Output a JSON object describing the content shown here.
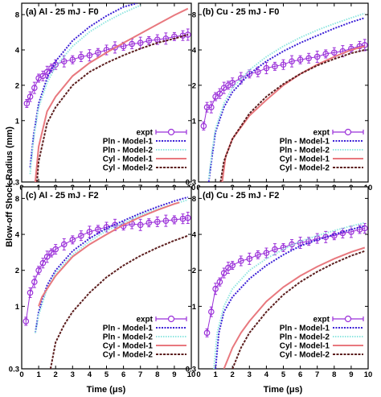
{
  "figure": {
    "ylabel": "Blow-off Shock Radius (mm)",
    "xlabel": "Time (μs)"
  },
  "series_style": {
    "expt": {
      "color": "#9b30d9"
    },
    "Pln - Model-1": {
      "color": "#3b1fd6"
    },
    "Pln - Model-2": {
      "color": "#8fe6e0"
    },
    "Cyl - Model-1": {
      "color": "#e8787e"
    },
    "Cyl - Model-2": {
      "color": "#5c1e1e"
    }
  },
  "chart_data": [
    {
      "type": "line",
      "title": "(a) Al - 25 mJ - F0",
      "xlabel": "Time (μs)",
      "ylabel": "Blow-off Shock Radius (mm)",
      "xlim": [
        0,
        10
      ],
      "ylim": [
        0.3,
        10
      ],
      "yscale": "log",
      "xticks": [
        "0",
        "1",
        "2",
        "3",
        "4",
        "5",
        "6",
        "7",
        "8",
        "9",
        "10"
      ],
      "yticks": [
        "0.3",
        "1",
        "2",
        "4",
        "8"
      ],
      "legend_position": "bottom-right",
      "series": [
        {
          "name": "expt",
          "x": [
            0.3,
            0.5,
            0.75,
            1.0,
            1.25,
            1.5,
            1.75,
            2.0,
            2.5,
            3.0,
            3.5,
            4.0,
            4.5,
            5.0,
            5.5,
            6.0,
            6.5,
            7.0,
            7.5,
            8.0,
            8.5,
            9.0,
            9.5,
            9.8
          ],
          "y": [
            1.4,
            1.6,
            1.9,
            2.3,
            2.4,
            2.6,
            2.8,
            3.0,
            3.2,
            3.3,
            3.5,
            3.6,
            3.8,
            4.0,
            4.2,
            4.3,
            4.5,
            4.6,
            4.8,
            4.9,
            5.0,
            5.2,
            5.3,
            5.4
          ]
        },
        {
          "name": "Pln - Model-1",
          "x": [
            0.5,
            0.7,
            1.0,
            1.5,
            2.0,
            3.0,
            4.0,
            5.0,
            6.0,
            6.8
          ],
          "y": [
            0.4,
            0.75,
            1.4,
            2.3,
            3.2,
            4.8,
            6.3,
            7.8,
            9.3,
            10.0
          ]
        },
        {
          "name": "Pln - Model-2",
          "x": [
            0.5,
            0.7,
            1.0,
            1.5,
            2.0,
            3.0,
            4.0,
            5.0,
            6.0,
            7.0
          ],
          "y": [
            0.35,
            0.7,
            1.3,
            2.1,
            2.9,
            4.3,
            5.7,
            7.0,
            8.3,
            9.6
          ]
        },
        {
          "name": "Cyl - Model-1",
          "x": [
            0.8,
            1.0,
            1.5,
            2.0,
            3.0,
            4.0,
            5.0,
            6.0,
            7.0,
            8.0,
            9.0,
            9.8
          ],
          "y": [
            0.3,
            0.6,
            1.2,
            1.6,
            2.4,
            3.1,
            3.8,
            4.6,
            5.5,
            6.6,
            7.9,
            9.0
          ]
        },
        {
          "name": "Cyl - Model-2",
          "x": [
            0.9,
            1.0,
            1.5,
            2.0,
            3.0,
            4.0,
            5.0,
            6.0,
            7.0,
            8.0,
            9.0,
            9.8
          ],
          "y": [
            0.3,
            0.45,
            0.95,
            1.3,
            2.0,
            2.6,
            3.1,
            3.6,
            4.1,
            4.6,
            5.0,
            5.4
          ]
        }
      ]
    },
    {
      "type": "line",
      "title": "(b) Cu - 25 mJ - F0",
      "xlabel": "Time (μs)",
      "ylabel": "Blow-off Shock Radius (mm)",
      "xlim": [
        0,
        10
      ],
      "ylim": [
        0.3,
        10
      ],
      "yscale": "log",
      "xticks": [
        "0",
        "1",
        "2",
        "3",
        "4",
        "5",
        "6",
        "7",
        "8",
        "9",
        "10"
      ],
      "yticks": [
        "0.3",
        "1",
        "2",
        "4",
        "8"
      ],
      "legend_position": "bottom-right",
      "series": [
        {
          "name": "expt",
          "x": [
            0.3,
            0.5,
            0.75,
            1.0,
            1.25,
            1.5,
            1.75,
            2.0,
            2.5,
            3.0,
            3.5,
            4.0,
            4.5,
            5.0,
            5.5,
            6.0,
            6.5,
            7.0,
            7.5,
            8.0,
            8.5,
            9.0,
            9.5,
            9.8
          ],
          "y": [
            0.9,
            1.3,
            1.3,
            1.6,
            1.7,
            1.9,
            2.0,
            2.1,
            2.3,
            2.5,
            2.6,
            2.8,
            2.9,
            3.0,
            3.2,
            3.3,
            3.4,
            3.5,
            3.7,
            3.8,
            3.9,
            4.1,
            4.3,
            4.4
          ]
        },
        {
          "name": "Pln - Model-1",
          "x": [
            0.6,
            0.8,
            1.0,
            1.5,
            2.0,
            3.0,
            4.0,
            5.0,
            6.0,
            7.0,
            8.0,
            9.0,
            9.8
          ],
          "y": [
            0.3,
            0.5,
            0.8,
            1.3,
            1.75,
            2.5,
            3.2,
            3.9,
            4.6,
            5.3,
            6.1,
            6.9,
            7.5
          ]
        },
        {
          "name": "Pln - Model-2",
          "x": [
            0.6,
            0.8,
            1.0,
            1.5,
            2.0,
            3.0,
            4.0,
            5.0,
            6.0,
            7.0,
            8.0,
            9.0,
            9.8
          ],
          "y": [
            0.32,
            0.55,
            0.85,
            1.4,
            1.9,
            2.7,
            3.5,
            4.3,
            5.1,
            5.9,
            6.7,
            7.5,
            8.2
          ]
        },
        {
          "name": "Cyl - Model-1",
          "x": [
            1.4,
            1.6,
            2.0,
            3.0,
            4.0,
            5.0,
            6.0,
            7.0,
            8.0,
            9.0,
            9.8
          ],
          "y": [
            0.3,
            0.5,
            0.7,
            1.1,
            1.5,
            2.0,
            2.5,
            3.0,
            3.5,
            4.0,
            4.3
          ]
        },
        {
          "name": "Cyl - Model-2",
          "x": [
            1.3,
            1.5,
            2.0,
            3.0,
            4.0,
            5.0,
            6.0,
            7.0,
            8.0,
            9.0,
            9.8
          ],
          "y": [
            0.3,
            0.45,
            0.7,
            1.15,
            1.6,
            2.05,
            2.5,
            2.95,
            3.35,
            3.75,
            4.0
          ]
        }
      ]
    },
    {
      "type": "line",
      "title": "(c) Al - 25 mJ - F2",
      "xlabel": "Time (μs)",
      "ylabel": "Blow-off Shock Radius (mm)",
      "xlim": [
        0,
        10
      ],
      "ylim": [
        0.3,
        10
      ],
      "yscale": "log",
      "xticks": [
        "0",
        "1",
        "2",
        "3",
        "4",
        "5",
        "6",
        "7",
        "8",
        "9",
        "10"
      ],
      "yticks": [
        "0.3",
        "1",
        "2",
        "4",
        "8"
      ],
      "legend_position": "bottom-right",
      "series": [
        {
          "name": "expt",
          "x": [
            0.25,
            0.5,
            0.75,
            1.0,
            1.25,
            1.5,
            1.75,
            2.0,
            2.5,
            3.0,
            3.5,
            4.0,
            4.5,
            5.0,
            5.5,
            6.0,
            6.5,
            7.0,
            7.5,
            8.0,
            8.5,
            9.0,
            9.5,
            9.8
          ],
          "y": [
            0.75,
            1.3,
            1.6,
            2.0,
            2.3,
            2.6,
            2.8,
            3.0,
            3.3,
            3.6,
            3.9,
            4.2,
            4.4,
            4.6,
            4.8,
            4.7,
            4.9,
            4.8,
            5.0,
            5.1,
            5.2,
            5.3,
            5.4,
            5.5
          ]
        },
        {
          "name": "Pln - Model-1",
          "x": [
            0.8,
            1.0,
            1.5,
            2.0,
            3.0,
            4.0,
            5.0,
            6.0,
            7.0,
            8.0,
            9.0,
            9.8
          ],
          "y": [
            0.6,
            0.9,
            1.5,
            2.0,
            2.9,
            3.7,
            4.5,
            5.2,
            6.0,
            6.8,
            7.6,
            8.2
          ]
        },
        {
          "name": "Pln - Model-2",
          "x": [
            0.8,
            1.0,
            1.5,
            2.0,
            3.0,
            4.0,
            5.0,
            6.0,
            7.0,
            8.0,
            9.0,
            9.8
          ],
          "y": [
            0.6,
            0.85,
            1.4,
            1.9,
            2.7,
            3.5,
            4.3,
            5.0,
            5.8,
            6.5,
            7.2,
            7.8
          ]
        },
        {
          "name": "Cyl - Model-1",
          "x": [
            1.0,
            1.2,
            1.5,
            2.0,
            3.0,
            4.0,
            5.0,
            6.0,
            7.0,
            8.0,
            9.0,
            9.3
          ],
          "y": [
            1.0,
            1.2,
            1.4,
            1.8,
            2.6,
            3.3,
            4.0,
            4.8,
            5.6,
            6.4,
            7.2,
            7.4
          ]
        },
        {
          "name": "Cyl - Model-2",
          "x": [
            1.7,
            2.0,
            2.5,
            3.0,
            4.0,
            5.0,
            6.0,
            7.0,
            8.0,
            9.0,
            9.8
          ],
          "y": [
            0.3,
            0.5,
            0.7,
            0.9,
            1.3,
            1.75,
            2.2,
            2.65,
            3.1,
            3.55,
            3.9
          ]
        }
      ]
    },
    {
      "type": "line",
      "title": "(d) Cu - 25 mJ - F2",
      "xlabel": "Time (μs)",
      "ylabel": "Blow-off Shock Radius (mm)",
      "xlim": [
        0,
        10
      ],
      "ylim": [
        0.3,
        10
      ],
      "yscale": "log",
      "xticks": [
        "0",
        "1",
        "2",
        "3",
        "4",
        "5",
        "6",
        "7",
        "8",
        "9",
        "10"
      ],
      "yticks": [
        "0.3",
        "1",
        "2",
        "4",
        "8"
      ],
      "legend_position": "bottom-right",
      "series": [
        {
          "name": "expt",
          "x": [
            0.5,
            0.75,
            1.0,
            1.25,
            1.5,
            1.75,
            2.0,
            2.5,
            3.0,
            3.5,
            4.0,
            4.5,
            5.0,
            5.5,
            6.0,
            6.5,
            7.0,
            7.5,
            8.0,
            8.5,
            9.0,
            9.5,
            9.8
          ],
          "y": [
            0.6,
            0.9,
            1.4,
            1.6,
            1.9,
            2.1,
            2.2,
            2.4,
            2.5,
            2.7,
            2.8,
            3.0,
            3.1,
            3.3,
            3.4,
            3.5,
            3.7,
            3.8,
            3.9,
            4.1,
            4.2,
            4.4,
            4.5
          ]
        },
        {
          "name": "Pln - Model-1",
          "x": [
            1.0,
            1.2,
            1.5,
            2.0,
            3.0,
            4.0,
            5.0,
            6.0,
            7.0,
            8.0,
            9.0,
            9.8
          ],
          "y": [
            0.3,
            0.6,
            0.9,
            1.2,
            1.7,
            2.2,
            2.7,
            3.2,
            3.6,
            4.0,
            4.4,
            4.7
          ]
        },
        {
          "name": "Pln - Model-2",
          "x": [
            0.9,
            1.1,
            1.5,
            2.0,
            3.0,
            4.0,
            5.0,
            6.0,
            7.0,
            8.0,
            9.0,
            9.8
          ],
          "y": [
            0.3,
            0.6,
            1.0,
            1.4,
            2.0,
            2.5,
            3.0,
            3.5,
            3.9,
            4.3,
            4.7,
            5.0
          ]
        },
        {
          "name": "Cyl - Model-1",
          "x": [
            1.5,
            2.0,
            2.5,
            3.0,
            4.0,
            5.0,
            6.0,
            7.0,
            8.0,
            9.0,
            9.8
          ],
          "y": [
            0.3,
            0.45,
            0.6,
            0.75,
            1.1,
            1.45,
            1.8,
            2.15,
            2.5,
            2.85,
            3.1
          ]
        },
        {
          "name": "Cyl - Model-2",
          "x": [
            2.0,
            2.5,
            3.0,
            4.0,
            5.0,
            6.0,
            7.0,
            8.0,
            9.0,
            9.8
          ],
          "y": [
            0.3,
            0.45,
            0.6,
            0.9,
            1.25,
            1.6,
            1.95,
            2.3,
            2.65,
            2.9
          ]
        }
      ]
    }
  ]
}
